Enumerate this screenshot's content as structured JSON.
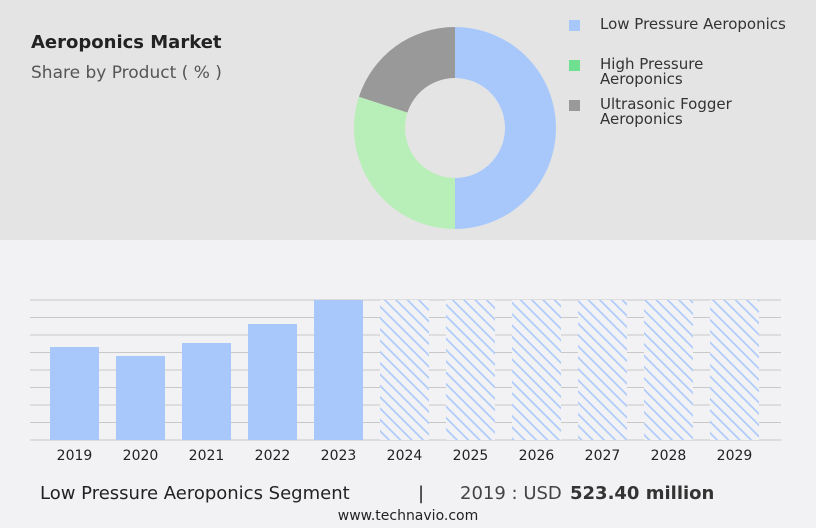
{
  "title": "Aeroponics Market",
  "subtitle": "Share by Product ( % )",
  "chart_data": [
    {
      "type": "pie",
      "donut": true,
      "legend": [
        "Low Pressure Aeroponics",
        "High Pressure Aeroponics",
        "Ultrasonic Fogger Aeroponics"
      ],
      "values": [
        50,
        30,
        20
      ],
      "colors": [
        "#a8c8fc",
        "#b8eeb8",
        "#999999"
      ],
      "legend_colors": [
        "#a8c8fc",
        "#6fe08f",
        "#999999"
      ],
      "legend_placement": "right"
    },
    {
      "type": "bar",
      "categories": [
        "2019",
        "2020",
        "2021",
        "2022",
        "2023",
        "2024",
        "2025",
        "2026",
        "2027",
        "2028",
        "2029"
      ],
      "values": [
        523.4,
        473,
        546,
        653,
        788,
        null,
        null,
        null,
        null,
        null,
        null
      ],
      "forecast": [
        "2024",
        "2025",
        "2026",
        "2027",
        "2028",
        "2029"
      ],
      "color": "#a8c8fc",
      "grid": true,
      "ylim": [
        0,
        788
      ]
    }
  ],
  "footer": {
    "segment": "Low Pressure Aeroponics Segment",
    "separator": "|",
    "year_label": "2019 : USD",
    "value": "523.40 million"
  },
  "site": "www.technavio.com"
}
